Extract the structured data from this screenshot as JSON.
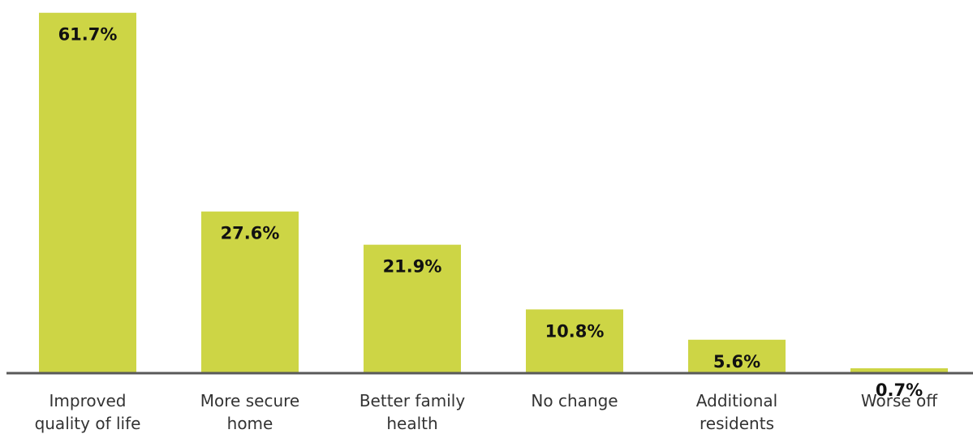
{
  "colors": {
    "bar": "#cdd545",
    "axis": "#595959",
    "value_text": "#111111",
    "category_text": "#333333",
    "background": "#ffffff"
  },
  "chart_data": {
    "type": "bar",
    "title": "",
    "xlabel": "",
    "ylabel": "",
    "ylim": [
      0,
      62.5
    ],
    "grid": false,
    "legend": "none",
    "categories": [
      [
        "Improved",
        "quality of life"
      ],
      [
        "More secure",
        "home"
      ],
      [
        "Better family",
        "health"
      ],
      [
        "No change"
      ],
      [
        "Additional",
        "residents"
      ],
      [
        "Worse off"
      ]
    ],
    "values": [
      61.7,
      27.6,
      21.9,
      10.8,
      5.6,
      0.7
    ],
    "value_labels": [
      "61.7%",
      "27.6%",
      "21.9%",
      "10.8%",
      "5.6%",
      "0.7%"
    ]
  }
}
